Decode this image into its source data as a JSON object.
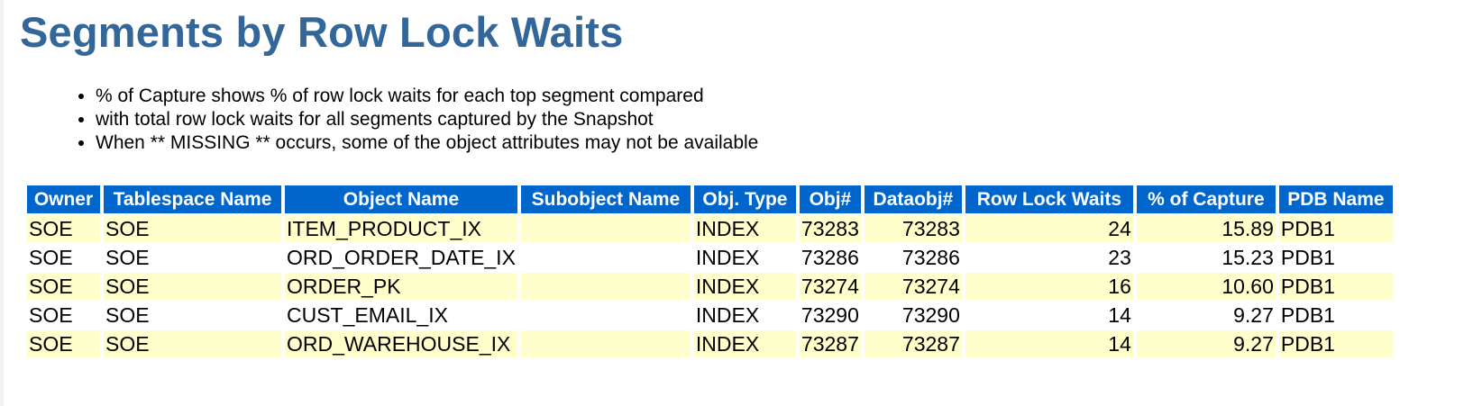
{
  "title": "Segments by Row Lock Waits",
  "notes": [
    "% of Capture shows % of row lock waits for each top segment compared",
    "with total row lock waits for all segments captured by the Snapshot",
    "When ** MISSING ** occurs, some of the object attributes may not be available"
  ],
  "table": {
    "headers": [
      "Owner",
      "Tablespace Name",
      "Object Name",
      "Subobject Name",
      "Obj. Type",
      "Obj#",
      "Dataobj#",
      "Row Lock Waits",
      "% of Capture",
      "PDB Name"
    ],
    "rows": [
      [
        "SOE",
        "SOE",
        "ITEM_PRODUCT_IX",
        "",
        "INDEX",
        "73283",
        "73283",
        "24",
        "15.89",
        "PDB1"
      ],
      [
        "SOE",
        "SOE",
        "ORD_ORDER_DATE_IX",
        "",
        "INDEX",
        "73286",
        "73286",
        "23",
        "15.23",
        "PDB1"
      ],
      [
        "SOE",
        "SOE",
        "ORDER_PK",
        "",
        "INDEX",
        "73274",
        "73274",
        "16",
        "10.60",
        "PDB1"
      ],
      [
        "SOE",
        "SOE",
        "CUST_EMAIL_IX",
        "",
        "INDEX",
        "73290",
        "73290",
        "14",
        "9.27",
        "PDB1"
      ],
      [
        "SOE",
        "SOE",
        "ORD_WAREHOUSE_IX",
        "",
        "INDEX",
        "73287",
        "73287",
        "14",
        "9.27",
        "PDB1"
      ]
    ]
  },
  "colors": {
    "title": "#336699",
    "header_bg": "#0066cc",
    "header_text": "#ffffff",
    "odd_row_bg": "#ffffcc",
    "even_row_bg": "#ffffff"
  }
}
